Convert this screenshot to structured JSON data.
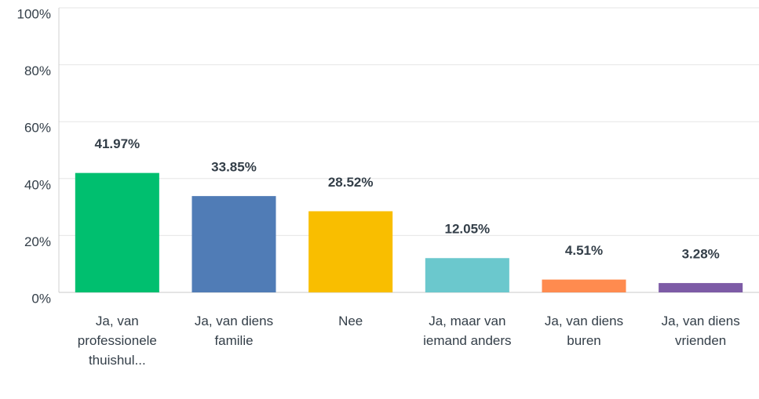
{
  "chart_data": {
    "type": "bar",
    "categories": [
      "Ja, van professionele thuishul...",
      "Ja, van diens familie",
      "Nee",
      "Ja, maar van iemand anders",
      "Ja, van diens buren",
      "Ja, van diens vrienden"
    ],
    "values": [
      41.97,
      33.85,
      28.52,
      12.05,
      4.51,
      3.28
    ],
    "value_labels": [
      "41.97%",
      "33.85%",
      "28.52%",
      "12.05%",
      "4.51%",
      "3.28%"
    ],
    "colors": [
      "#00bf6f",
      "#507cb6",
      "#f9be00",
      "#6bc8cd",
      "#ff8b4f",
      "#7d5ba6"
    ],
    "ylim": [
      0,
      100
    ],
    "yticks": [
      {
        "value": 0,
        "label": "0%"
      },
      {
        "value": 20,
        "label": "20%"
      },
      {
        "value": 40,
        "label": "40%"
      },
      {
        "value": 60,
        "label": "60%"
      },
      {
        "value": 80,
        "label": "80%"
      },
      {
        "value": 100,
        "label": "100%"
      }
    ],
    "grid": true
  }
}
